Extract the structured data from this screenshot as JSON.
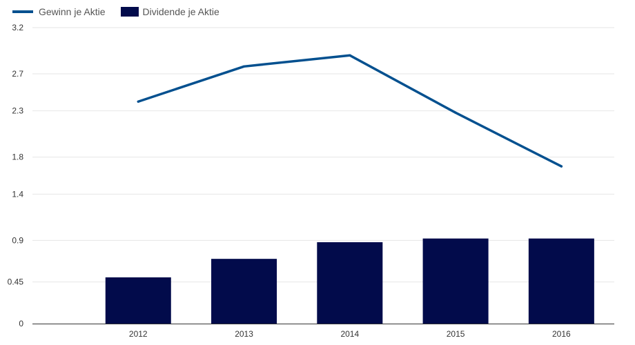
{
  "chart_data": {
    "type": "bar",
    "title": "",
    "xlabel": "",
    "ylabel": "",
    "categories": [
      "2012",
      "2013",
      "2014",
      "2015",
      "2016"
    ],
    "y_ticks": [
      0,
      0.45,
      0.9,
      1.4,
      1.8,
      2.3,
      2.7,
      3.2
    ],
    "y_tick_labels": [
      "0",
      "0.45",
      "0.9",
      "1.4",
      "1.8",
      "2.3",
      "2.7",
      "3.2"
    ],
    "ylim": [
      0,
      3.2
    ],
    "grid": true,
    "legend_position": "top-left",
    "series": [
      {
        "name": "Gewinn je Aktie",
        "type": "line",
        "color": "#03508f",
        "values": [
          2.4,
          2.78,
          2.9,
          2.28,
          1.7
        ]
      },
      {
        "name": "Dividende je Aktie",
        "type": "bar",
        "color": "#020b4b",
        "values": [
          0.5,
          0.7,
          0.88,
          0.92,
          0.92
        ]
      }
    ]
  }
}
